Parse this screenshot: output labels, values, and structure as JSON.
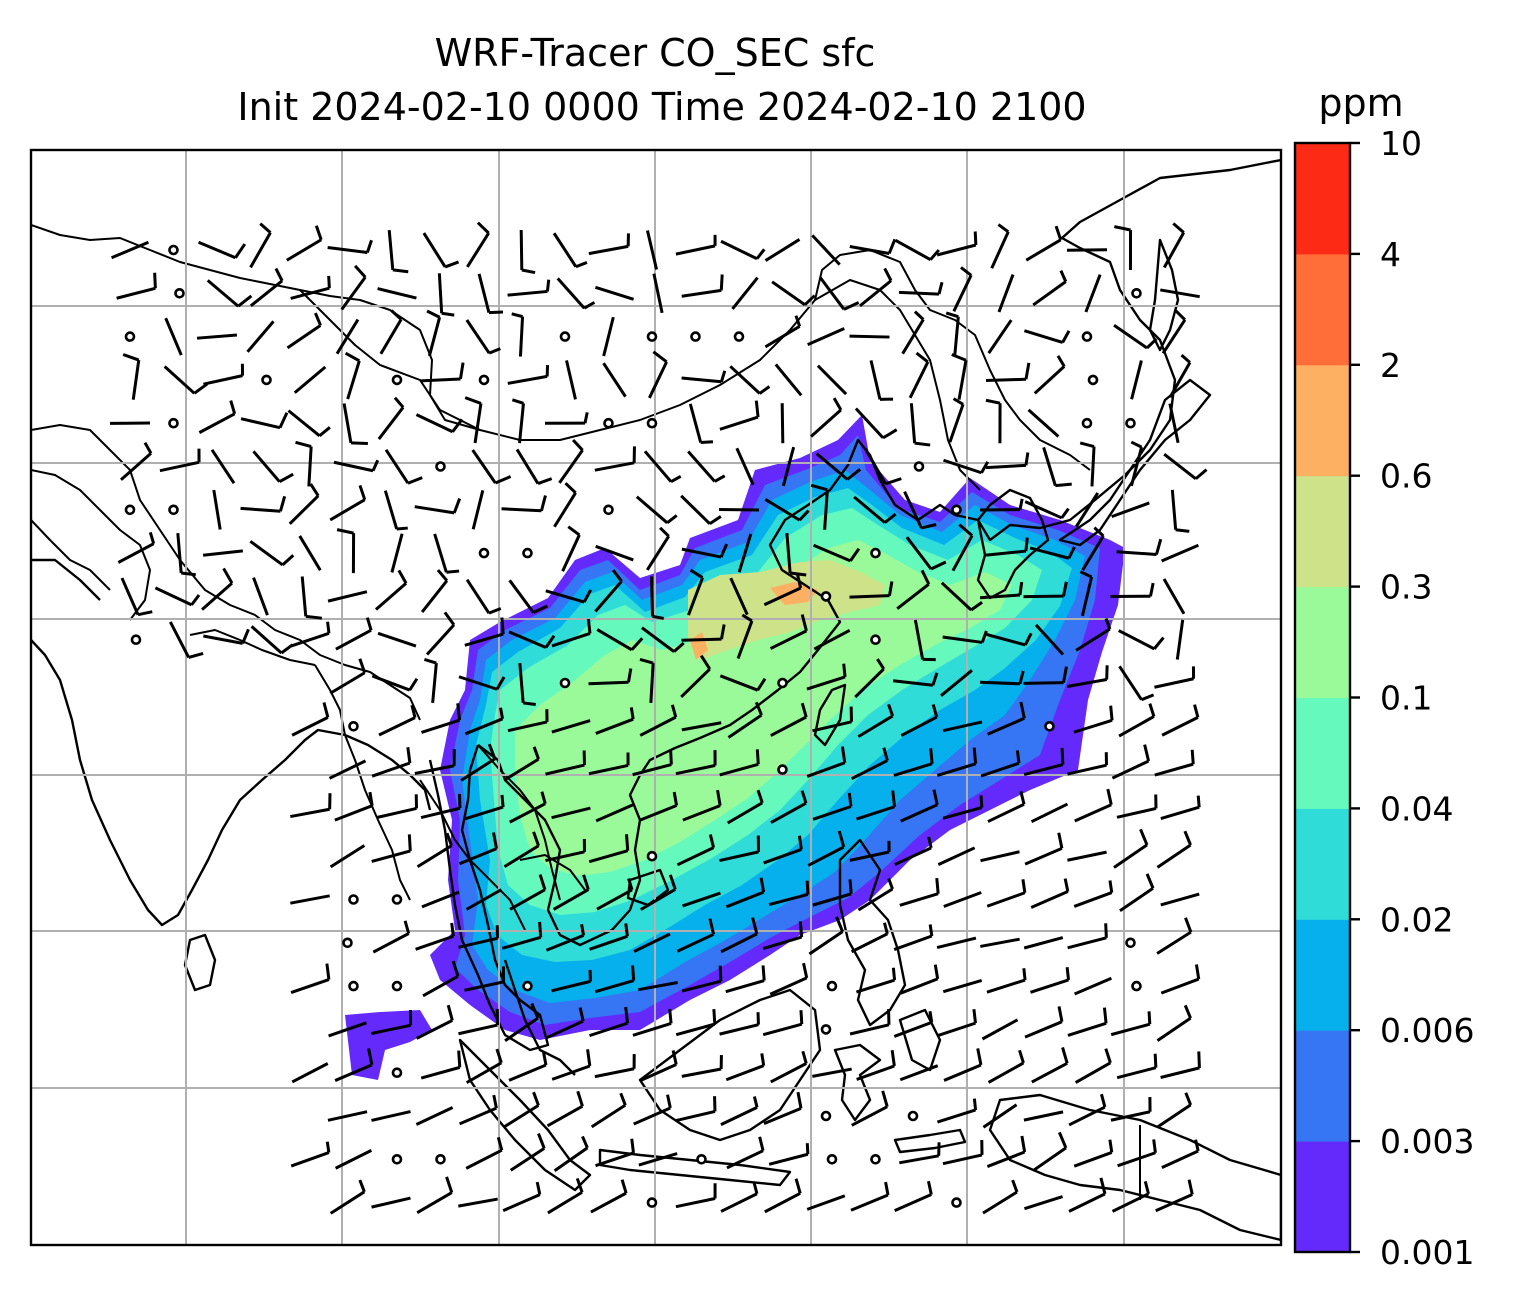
{
  "title": {
    "line1": "WRF-Tracer CO_SEC sfc",
    "line2": "Init 2024-02-10 0000 Time 2024-02-10 2100"
  },
  "colorbar": {
    "unit": "ppm",
    "levels": [
      {
        "label": "0.001",
        "color": "#6429fb"
      },
      {
        "label": "0.003",
        "color": "#3675f4"
      },
      {
        "label": "0.006",
        "color": "#06b0ec"
      },
      {
        "label": "0.02",
        "color": "#30dcd8"
      },
      {
        "label": "0.04",
        "color": "#66f9bd"
      },
      {
        "label": "0.1",
        "color": "#9afa9a"
      },
      {
        "label": "0.3",
        "color": "#cde289"
      },
      {
        "label": "0.6",
        "color": "#fdaf62"
      },
      {
        "label": "2",
        "color": "#ff6e39"
      },
      {
        "label": "4",
        "color": "#fd2a16"
      },
      {
        "label": "10",
        "color": ""
      }
    ]
  },
  "map": {
    "gridlines": "on",
    "features": [
      "coastlines",
      "country-borders",
      "wind-barbs",
      "calm-wind-circles",
      "tracer-concentration-fill"
    ]
  }
}
